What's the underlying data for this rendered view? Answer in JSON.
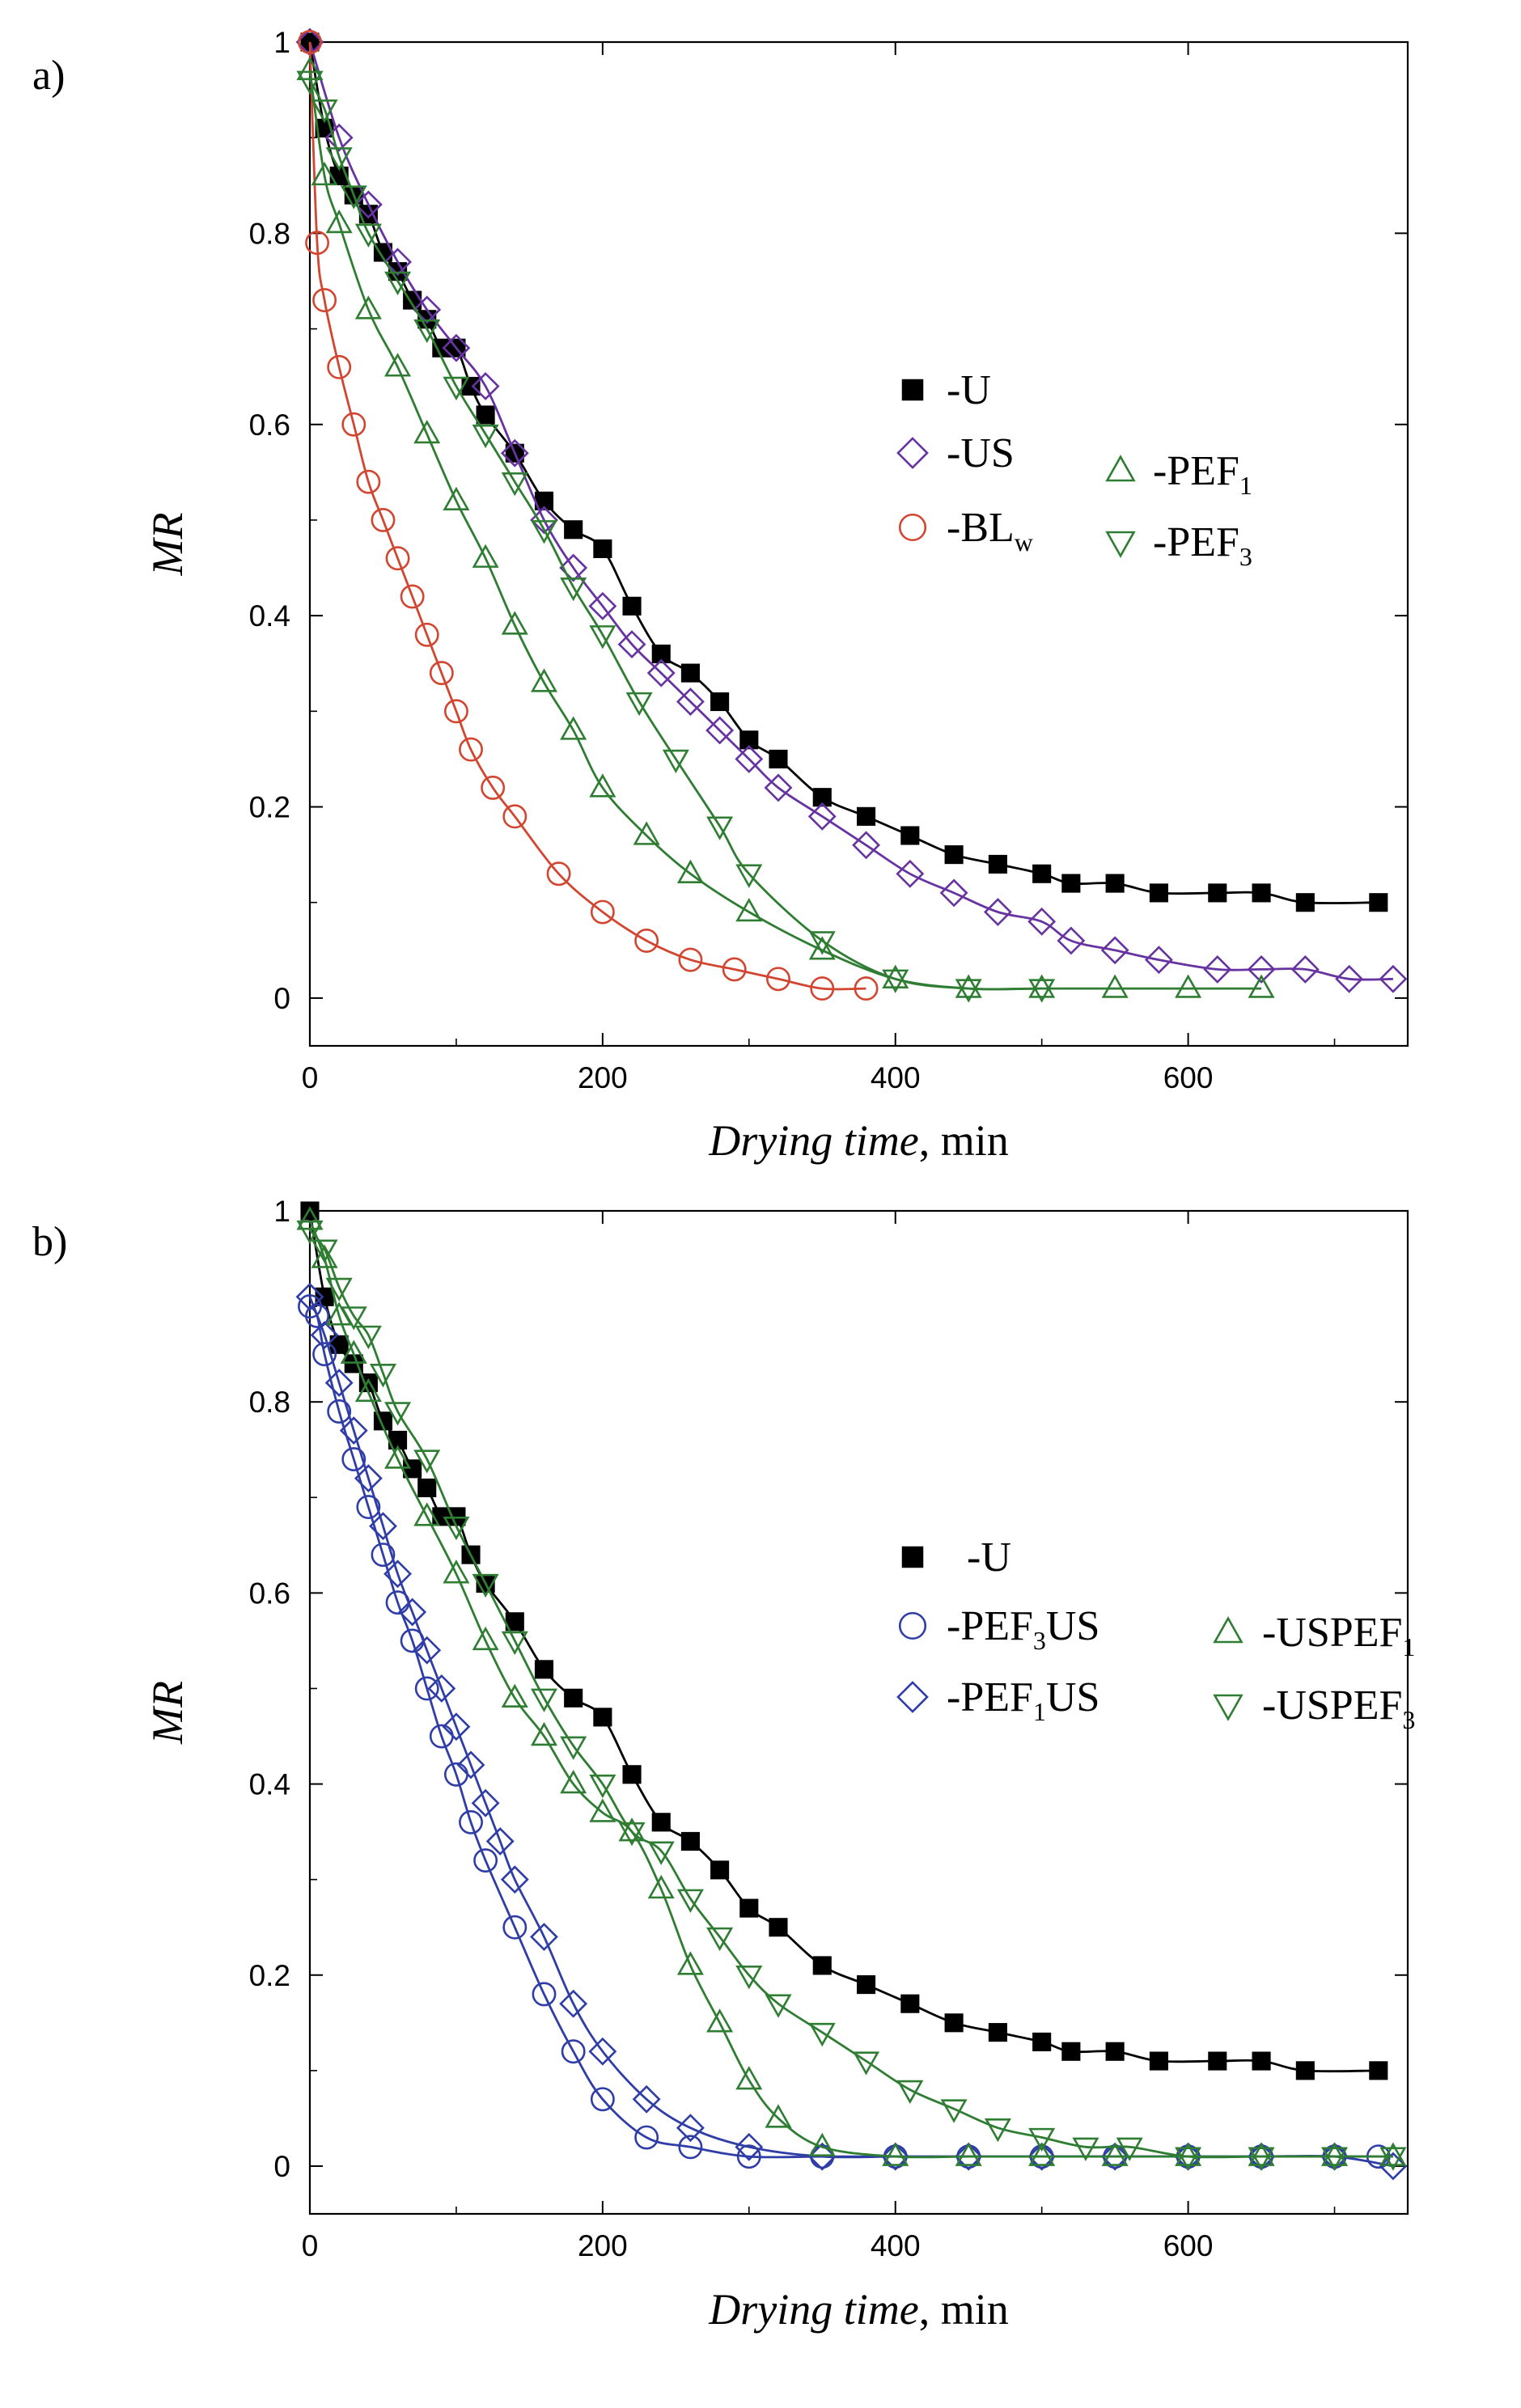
{
  "panels": [
    {
      "tag": "a)"
    },
    {
      "tag": "b)"
    }
  ],
  "chart_data": [
    {
      "type": "line",
      "panel": "a)",
      "xlabel_italic": "Drying time",
      "xlabel_unit": ", min",
      "ylabel": "MR",
      "xlim": [
        0,
        750
      ],
      "ylim": [
        -0.05,
        1.0
      ],
      "xticks": [
        0,
        200,
        400,
        600
      ],
      "yticks": [
        0,
        0.2,
        0.4,
        0.6,
        0.8,
        1
      ],
      "ytick_labels": [
        "0",
        "0.2",
        "0.4",
        "0.6",
        "0.8",
        "1"
      ],
      "legend_position": "upper-right",
      "series": [
        {
          "key": "U",
          "name": "-U",
          "marker": "square",
          "color": "#000000",
          "x": [
            0,
            10,
            20,
            30,
            40,
            50,
            60,
            70,
            80,
            90,
            100,
            110,
            120,
            140,
            160,
            180,
            200,
            220,
            240,
            260,
            280,
            300,
            320,
            350,
            380,
            410,
            440,
            470,
            500,
            520,
            550,
            580,
            620,
            650,
            680,
            730
          ],
          "y": [
            1.0,
            0.91,
            0.86,
            0.84,
            0.82,
            0.78,
            0.76,
            0.73,
            0.71,
            0.68,
            0.68,
            0.64,
            0.61,
            0.57,
            0.52,
            0.49,
            0.47,
            0.41,
            0.36,
            0.34,
            0.31,
            0.27,
            0.25,
            0.21,
            0.19,
            0.17,
            0.15,
            0.14,
            0.13,
            0.12,
            0.12,
            0.11,
            0.11,
            0.11,
            0.1,
            0.1
          ]
        },
        {
          "key": "US",
          "name": "-US",
          "marker": "diamond",
          "color": "#6633a0",
          "x": [
            0,
            20,
            40,
            60,
            80,
            100,
            120,
            140,
            160,
            180,
            200,
            220,
            240,
            260,
            280,
            300,
            320,
            350,
            380,
            410,
            440,
            470,
            500,
            520,
            550,
            580,
            620,
            650,
            680,
            710,
            740
          ],
          "y": [
            1.0,
            0.9,
            0.83,
            0.77,
            0.72,
            0.68,
            0.64,
            0.57,
            0.5,
            0.45,
            0.41,
            0.37,
            0.34,
            0.31,
            0.28,
            0.25,
            0.22,
            0.19,
            0.16,
            0.13,
            0.11,
            0.09,
            0.08,
            0.06,
            0.05,
            0.04,
            0.03,
            0.03,
            0.03,
            0.02,
            0.02
          ]
        },
        {
          "key": "BLw",
          "name_main": "-BL",
          "name_sub": "w",
          "marker": "circle",
          "color": "#d24530",
          "x": [
            0,
            5,
            10,
            20,
            30,
            40,
            50,
            60,
            70,
            80,
            90,
            100,
            110,
            125,
            140,
            170,
            200,
            230,
            260,
            290,
            320,
            350,
            380
          ],
          "y": [
            1.0,
            0.79,
            0.73,
            0.66,
            0.6,
            0.54,
            0.5,
            0.46,
            0.42,
            0.38,
            0.34,
            0.3,
            0.26,
            0.22,
            0.19,
            0.13,
            0.09,
            0.06,
            0.04,
            0.03,
            0.02,
            0.01,
            0.01
          ]
        },
        {
          "key": "PEF1",
          "name_main": "-PEF",
          "name_sub": "1",
          "marker": "triangle-up",
          "color": "#2e7d32",
          "x": [
            0,
            10,
            20,
            40,
            60,
            80,
            100,
            120,
            140,
            160,
            180,
            200,
            230,
            260,
            300,
            350,
            400,
            450,
            500,
            550,
            600,
            650
          ],
          "y": [
            0.97,
            0.86,
            0.81,
            0.72,
            0.66,
            0.59,
            0.52,
            0.46,
            0.39,
            0.33,
            0.28,
            0.22,
            0.17,
            0.13,
            0.09,
            0.05,
            0.02,
            0.01,
            0.01,
            0.01,
            0.01,
            0.01
          ]
        },
        {
          "key": "PEF3",
          "name_main": "-PEF",
          "name_sub": "3",
          "marker": "triangle-down",
          "color": "#2e7d32",
          "x": [
            0,
            10,
            20,
            30,
            40,
            60,
            80,
            100,
            120,
            140,
            160,
            180,
            200,
            225,
            250,
            280,
            300,
            350,
            400,
            450,
            500
          ],
          "y": [
            0.96,
            0.93,
            0.88,
            0.84,
            0.8,
            0.75,
            0.7,
            0.64,
            0.59,
            0.54,
            0.49,
            0.43,
            0.38,
            0.31,
            0.25,
            0.18,
            0.13,
            0.06,
            0.02,
            0.01,
            0.01
          ]
        }
      ]
    },
    {
      "type": "line",
      "panel": "b)",
      "xlabel_italic": "Drying time",
      "xlabel_unit": ", min",
      "ylabel": "MR",
      "xlim": [
        0,
        750
      ],
      "ylim": [
        -0.05,
        1.0
      ],
      "xticks": [
        0,
        200,
        400,
        600
      ],
      "yticks": [
        0,
        0.2,
        0.4,
        0.6,
        0.8,
        1
      ],
      "ytick_labels": [
        "0",
        "0.2",
        "0.4",
        "0.6",
        "0.8",
        "1"
      ],
      "legend_position": "center-right",
      "series": [
        {
          "key": "U",
          "name": "-U",
          "marker": "square",
          "color": "#000000",
          "x": [
            0,
            10,
            20,
            30,
            40,
            50,
            60,
            70,
            80,
            90,
            100,
            110,
            120,
            140,
            160,
            180,
            200,
            220,
            240,
            260,
            280,
            300,
            320,
            350,
            380,
            410,
            440,
            470,
            500,
            520,
            550,
            580,
            620,
            650,
            680,
            730
          ],
          "y": [
            1.0,
            0.91,
            0.86,
            0.84,
            0.82,
            0.78,
            0.76,
            0.73,
            0.71,
            0.68,
            0.68,
            0.64,
            0.61,
            0.57,
            0.52,
            0.49,
            0.47,
            0.41,
            0.36,
            0.34,
            0.31,
            0.27,
            0.25,
            0.21,
            0.19,
            0.17,
            0.15,
            0.14,
            0.13,
            0.12,
            0.12,
            0.11,
            0.11,
            0.11,
            0.1,
            0.1
          ]
        },
        {
          "key": "PEF3US",
          "name_main": "-PEF",
          "name_sub": "3",
          "name_tail": "US",
          "marker": "circle",
          "color": "#2f3da6",
          "x": [
            0,
            5,
            10,
            20,
            30,
            40,
            50,
            60,
            70,
            80,
            90,
            100,
            110,
            120,
            140,
            160,
            180,
            200,
            230,
            260,
            300,
            350,
            400,
            450,
            500,
            550,
            600,
            650,
            700,
            730
          ],
          "y": [
            0.9,
            0.89,
            0.85,
            0.79,
            0.74,
            0.69,
            0.64,
            0.59,
            0.55,
            0.5,
            0.45,
            0.41,
            0.36,
            0.32,
            0.25,
            0.18,
            0.12,
            0.07,
            0.03,
            0.02,
            0.01,
            0.01,
            0.01,
            0.01,
            0.01,
            0.01,
            0.01,
            0.01,
            0.01,
            0.01
          ]
        },
        {
          "key": "PEF1US",
          "name_main": "-PEF",
          "name_sub": "1",
          "name_tail": "US",
          "marker": "diamond",
          "color": "#2f3da6",
          "x": [
            0,
            10,
            20,
            30,
            40,
            50,
            60,
            70,
            80,
            90,
            100,
            110,
            120,
            130,
            140,
            160,
            180,
            200,
            230,
            260,
            300,
            350,
            400,
            450,
            500,
            550,
            600,
            650,
            700,
            740
          ],
          "y": [
            0.91,
            0.87,
            0.82,
            0.77,
            0.72,
            0.67,
            0.62,
            0.58,
            0.54,
            0.5,
            0.46,
            0.42,
            0.38,
            0.34,
            0.3,
            0.24,
            0.17,
            0.12,
            0.07,
            0.04,
            0.02,
            0.01,
            0.01,
            0.01,
            0.01,
            0.01,
            0.01,
            0.01,
            0.01,
            0.0
          ]
        },
        {
          "key": "USPEF1",
          "name_main": "-USPEF",
          "name_sub": "1",
          "marker": "triangle-up",
          "color": "#2e7d32",
          "x": [
            0,
            10,
            20,
            30,
            40,
            60,
            80,
            100,
            120,
            140,
            160,
            180,
            200,
            220,
            240,
            260,
            280,
            300,
            320,
            350,
            400,
            450,
            500,
            550,
            600,
            650,
            700,
            740
          ],
          "y": [
            0.99,
            0.95,
            0.89,
            0.85,
            0.81,
            0.74,
            0.68,
            0.62,
            0.55,
            0.49,
            0.45,
            0.4,
            0.37,
            0.35,
            0.29,
            0.21,
            0.15,
            0.09,
            0.05,
            0.02,
            0.01,
            0.01,
            0.01,
            0.01,
            0.01,
            0.01,
            0.01,
            0.01
          ]
        },
        {
          "key": "USPEF3",
          "name_main": "-USPEF",
          "name_sub": "3",
          "marker": "triangle-down",
          "color": "#2e7d32",
          "x": [
            0,
            10,
            20,
            30,
            40,
            50,
            60,
            80,
            100,
            120,
            140,
            160,
            180,
            200,
            220,
            240,
            260,
            280,
            300,
            320,
            350,
            380,
            410,
            440,
            470,
            500,
            530,
            560,
            600,
            650,
            700,
            740
          ],
          "y": [
            0.98,
            0.96,
            0.92,
            0.89,
            0.87,
            0.83,
            0.79,
            0.74,
            0.67,
            0.61,
            0.55,
            0.49,
            0.44,
            0.4,
            0.35,
            0.33,
            0.28,
            0.24,
            0.2,
            0.17,
            0.14,
            0.11,
            0.08,
            0.06,
            0.04,
            0.03,
            0.02,
            0.02,
            0.01,
            0.01,
            0.01,
            0.01
          ]
        }
      ]
    }
  ]
}
